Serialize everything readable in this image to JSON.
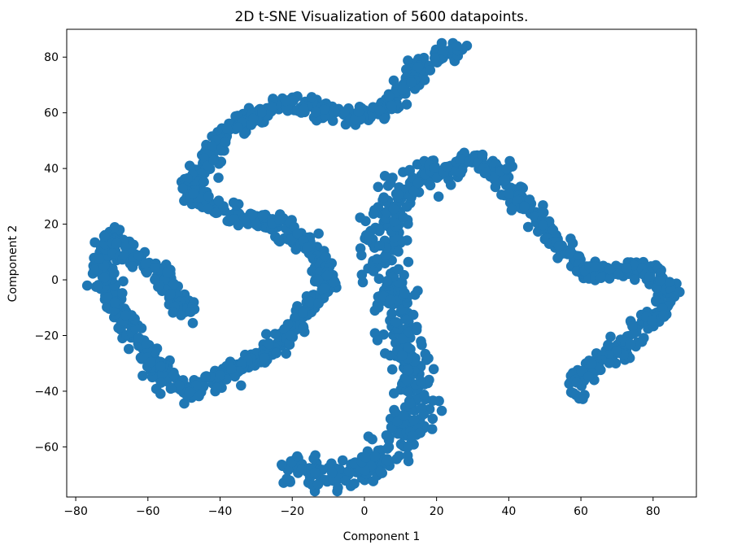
{
  "chart_data": {
    "type": "scatter",
    "title": "2D t-SNE Visualization of 5600 datapoints.",
    "xlabel": "Component 1",
    "ylabel": "Component 2",
    "xlim": [
      -82.5,
      92
    ],
    "ylim": [
      -78,
      90
    ],
    "xticks": [
      -80,
      -60,
      -40,
      -20,
      0,
      20,
      40,
      60,
      80
    ],
    "yticks": [
      -60,
      -40,
      -20,
      0,
      20,
      40,
      60,
      80
    ],
    "xtick_labels": [
      "−80",
      "−60",
      "−40",
      "−20",
      "0",
      "20",
      "40",
      "60",
      "80"
    ],
    "ytick_labels": [
      "−60",
      "−40",
      "−20",
      "0",
      "20",
      "40",
      "60",
      "80"
    ],
    "grid": false,
    "marker_color": "#1f77b4",
    "point_count": 5600,
    "arms": [
      {
        "name": "",
        "path": [
          [
            27,
            83
          ],
          [
            20,
            81
          ],
          [
            15,
            76
          ],
          [
            12,
            70
          ],
          [
            8,
            63
          ],
          [
            0,
            59
          ],
          [
            -10,
            60
          ],
          [
            -17,
            63
          ],
          [
            -25,
            62
          ],
          [
            -32,
            57
          ],
          [
            -38,
            54
          ],
          [
            -42,
            48
          ],
          [
            -44,
            43
          ],
          [
            -46,
            38
          ],
          [
            -48,
            32
          ],
          [
            -42,
            26
          ],
          [
            -33,
            22
          ],
          [
            -24,
            20
          ],
          [
            -18,
            15
          ],
          [
            -12,
            9
          ],
          [
            -10,
            0
          ],
          [
            -14,
            -8
          ],
          [
            -20,
            -18
          ],
          [
            -26,
            -25
          ],
          [
            -32,
            -30
          ],
          [
            -40,
            -36
          ],
          [
            -47,
            -40
          ],
          [
            -53,
            -38
          ],
          [
            -58,
            -30
          ],
          [
            -62,
            -22
          ],
          [
            -66,
            -15
          ],
          [
            -70,
            -8
          ],
          [
            -73,
            0
          ],
          [
            -72,
            10
          ],
          [
            -70,
            17
          ],
          [
            -64,
            8
          ],
          [
            -57,
            3
          ],
          [
            -52,
            -7
          ],
          [
            -47,
            -14
          ]
        ]
      },
      {
        "name": "",
        "path": [
          [
            -22,
            -68
          ],
          [
            -15,
            -69
          ],
          [
            -8,
            -70
          ],
          [
            0,
            -68
          ],
          [
            8,
            -62
          ],
          [
            12,
            -55
          ],
          [
            14,
            -45
          ],
          [
            14,
            -35
          ],
          [
            12,
            -25
          ],
          [
            10,
            -15
          ],
          [
            8,
            -5
          ],
          [
            6,
            5
          ],
          [
            5,
            15
          ],
          [
            6,
            25
          ],
          [
            9,
            32
          ],
          [
            15,
            37
          ],
          [
            22,
            40
          ],
          [
            28,
            43
          ],
          [
            32,
            44
          ],
          [
            36,
            40
          ],
          [
            42,
            30
          ],
          [
            48,
            22
          ],
          [
            54,
            13
          ],
          [
            59,
            6
          ],
          [
            64,
            3
          ],
          [
            70,
            4
          ],
          [
            76,
            4
          ],
          [
            82,
            1
          ],
          [
            84,
            -5
          ],
          [
            82,
            -12
          ],
          [
            76,
            -18
          ],
          [
            70,
            -25
          ],
          [
            65,
            -30
          ],
          [
            61,
            -35
          ],
          [
            59,
            -40
          ]
        ]
      }
    ]
  }
}
